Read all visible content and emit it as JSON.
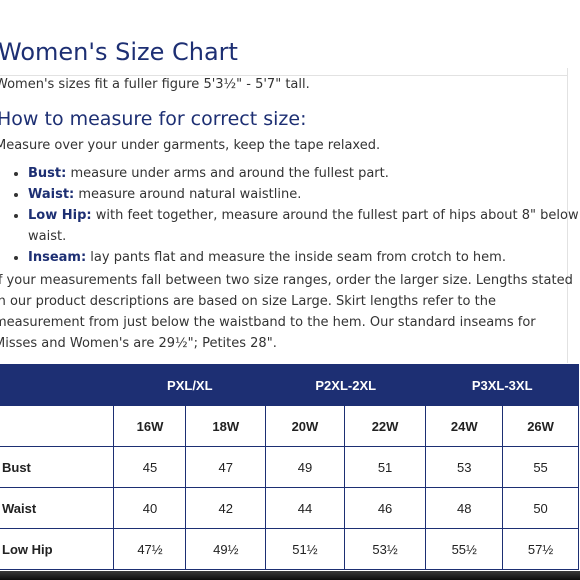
{
  "page": {
    "title": "Women's Size Chart",
    "subtitle": "Women's sizes fit a fuller figure 5'3½\" - 5'7\" tall.",
    "how_to_heading": "How to measure for correct size:",
    "how_to_intro": "Measure over your under garments, keep the tape relaxed.",
    "bullets": [
      {
        "term": "Bust:",
        "text": " measure under arms and around the fullest part."
      },
      {
        "term": "Waist:",
        "text": " measure around natural waistline."
      },
      {
        "term": "Low Hip:",
        "text": " with feet together, measure around the fullest part of hips about 8\" below waist."
      },
      {
        "term": "Inseam:",
        "text": " lay pants flat and measure the inside seam from crotch to hem."
      }
    ],
    "note": "If your measurements fall between two size ranges, order the larger size. Lengths stated in our product descriptions are based on size Large. Skirt lengths refer to the measurement from just below the waistband to the hem. Our standard inseams for Misses and Women's are 29½\"; Petites 28\"."
  },
  "table": {
    "groups": [
      "PXL/XL",
      "P2XL-2XL",
      "P3XL-3XL"
    ],
    "sizes": [
      "16W",
      "18W",
      "20W",
      "22W",
      "24W",
      "26W"
    ],
    "rows": [
      {
        "label": "Bust",
        "values": [
          "45",
          "47",
          "49",
          "51",
          "53",
          "55"
        ]
      },
      {
        "label": "Waist",
        "values": [
          "40",
          "42",
          "44",
          "46",
          "48",
          "50"
        ]
      },
      {
        "label": "Low Hip",
        "values": [
          "47½",
          "49½",
          "51½",
          "53½",
          "55½",
          "57½"
        ]
      }
    ]
  },
  "colors": {
    "brand_navy": "#1d2f73",
    "text": "#333333",
    "background": "#ffffff"
  }
}
